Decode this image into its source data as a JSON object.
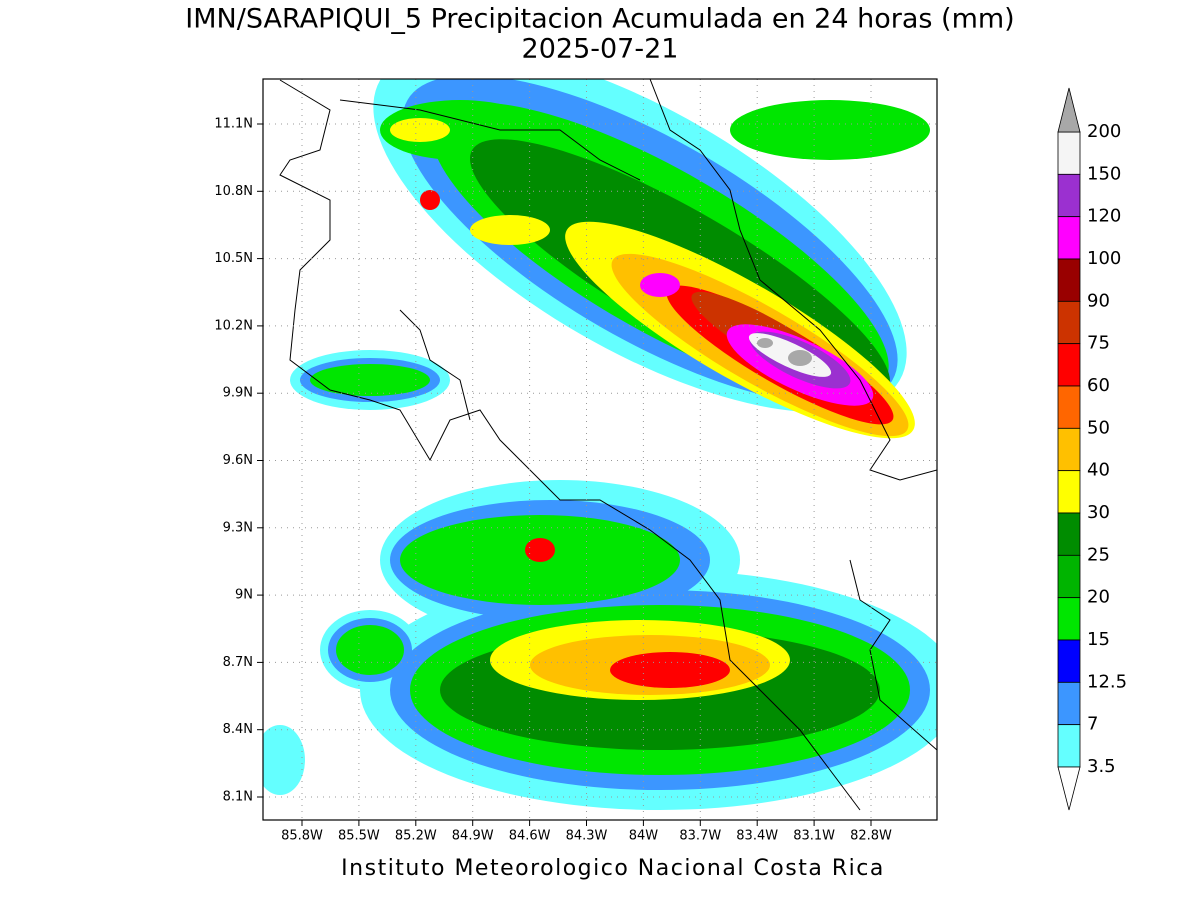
{
  "title": "IMN/SARAPIQUI_5 Precipitacion Acumulada en 24 horas (mm)",
  "subtitle": "2025-07-21",
  "footer": "Instituto Meteorologico Nacional Costa Rica",
  "lon_ticks": [
    "85.8W",
    "85.5W",
    "85.2W",
    "84.9W",
    "84.6W",
    "84.3W",
    "84W",
    "83.7W",
    "83.4W",
    "83.1W",
    "82.8W"
  ],
  "lat_ticks": [
    "11.1N",
    "10.8N",
    "10.5N",
    "10.2N",
    "9.9N",
    "9.6N",
    "9.3N",
    "9N",
    "8.7N",
    "8.4N",
    "8.1N"
  ],
  "colorbar": {
    "labels": [
      "200",
      "150",
      "120",
      "100",
      "90",
      "75",
      "60",
      "50",
      "40",
      "30",
      "25",
      "20",
      "15",
      "12.5",
      "7",
      "3.5"
    ],
    "colors": [
      "#f5f5f5",
      "#9b30d0",
      "#ff00ff",
      "#990000",
      "#cc3300",
      "#ff0000",
      "#ff6600",
      "#ffc000",
      "#ffff00",
      "#008c00",
      "#00b400",
      "#00e600",
      "#0000ff",
      "#3c96ff",
      "#64ffff"
    ],
    "over_color": "#a8a8a8",
    "under_color": "#ffffff"
  }
}
